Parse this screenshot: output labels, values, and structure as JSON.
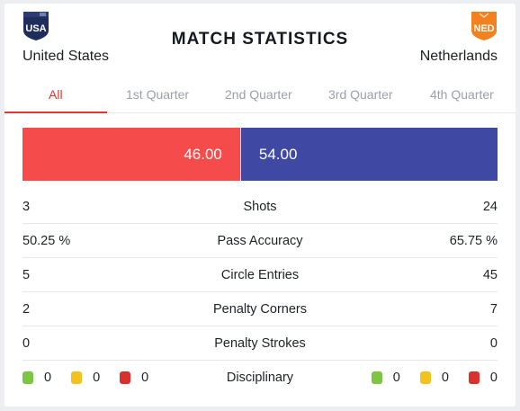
{
  "title": "MATCH STATISTICS",
  "home": {
    "code": "USA",
    "name": "United States",
    "color": "#1f2d5c"
  },
  "away": {
    "code": "NED",
    "name": "Netherlands",
    "color": "#f4811f"
  },
  "tabs": [
    {
      "label": "All",
      "active": true
    },
    {
      "label": "1st Quarter",
      "active": false
    },
    {
      "label": "2nd Quarter",
      "active": false
    },
    {
      "label": "3rd Quarter",
      "active": false
    },
    {
      "label": "4th Quarter",
      "active": false
    }
  ],
  "possession": {
    "home_label": "46.00",
    "away_label": "54.00",
    "home_value": 46.0,
    "away_value": 54.0,
    "home_color": "#f54b4b",
    "away_color": "#3f48a2"
  },
  "stats": [
    {
      "label": "Shots",
      "home": "3",
      "away": "24"
    },
    {
      "label": "Pass Accuracy",
      "home": "50.25 %",
      "away": "65.75 %"
    },
    {
      "label": "Circle Entries",
      "home": "5",
      "away": "45"
    },
    {
      "label": "Penalty Corners",
      "home": "2",
      "away": "7"
    },
    {
      "label": "Penalty Strokes",
      "home": "0",
      "away": "0"
    }
  ],
  "disciplinary": {
    "label": "Disciplinary",
    "card_colors": {
      "green": "#7cc644",
      "yellow": "#f2c31f",
      "red": "#d8312e"
    },
    "home": {
      "green": "0",
      "yellow": "0",
      "red": "0"
    },
    "away": {
      "green": "0",
      "yellow": "0",
      "red": "0"
    }
  }
}
